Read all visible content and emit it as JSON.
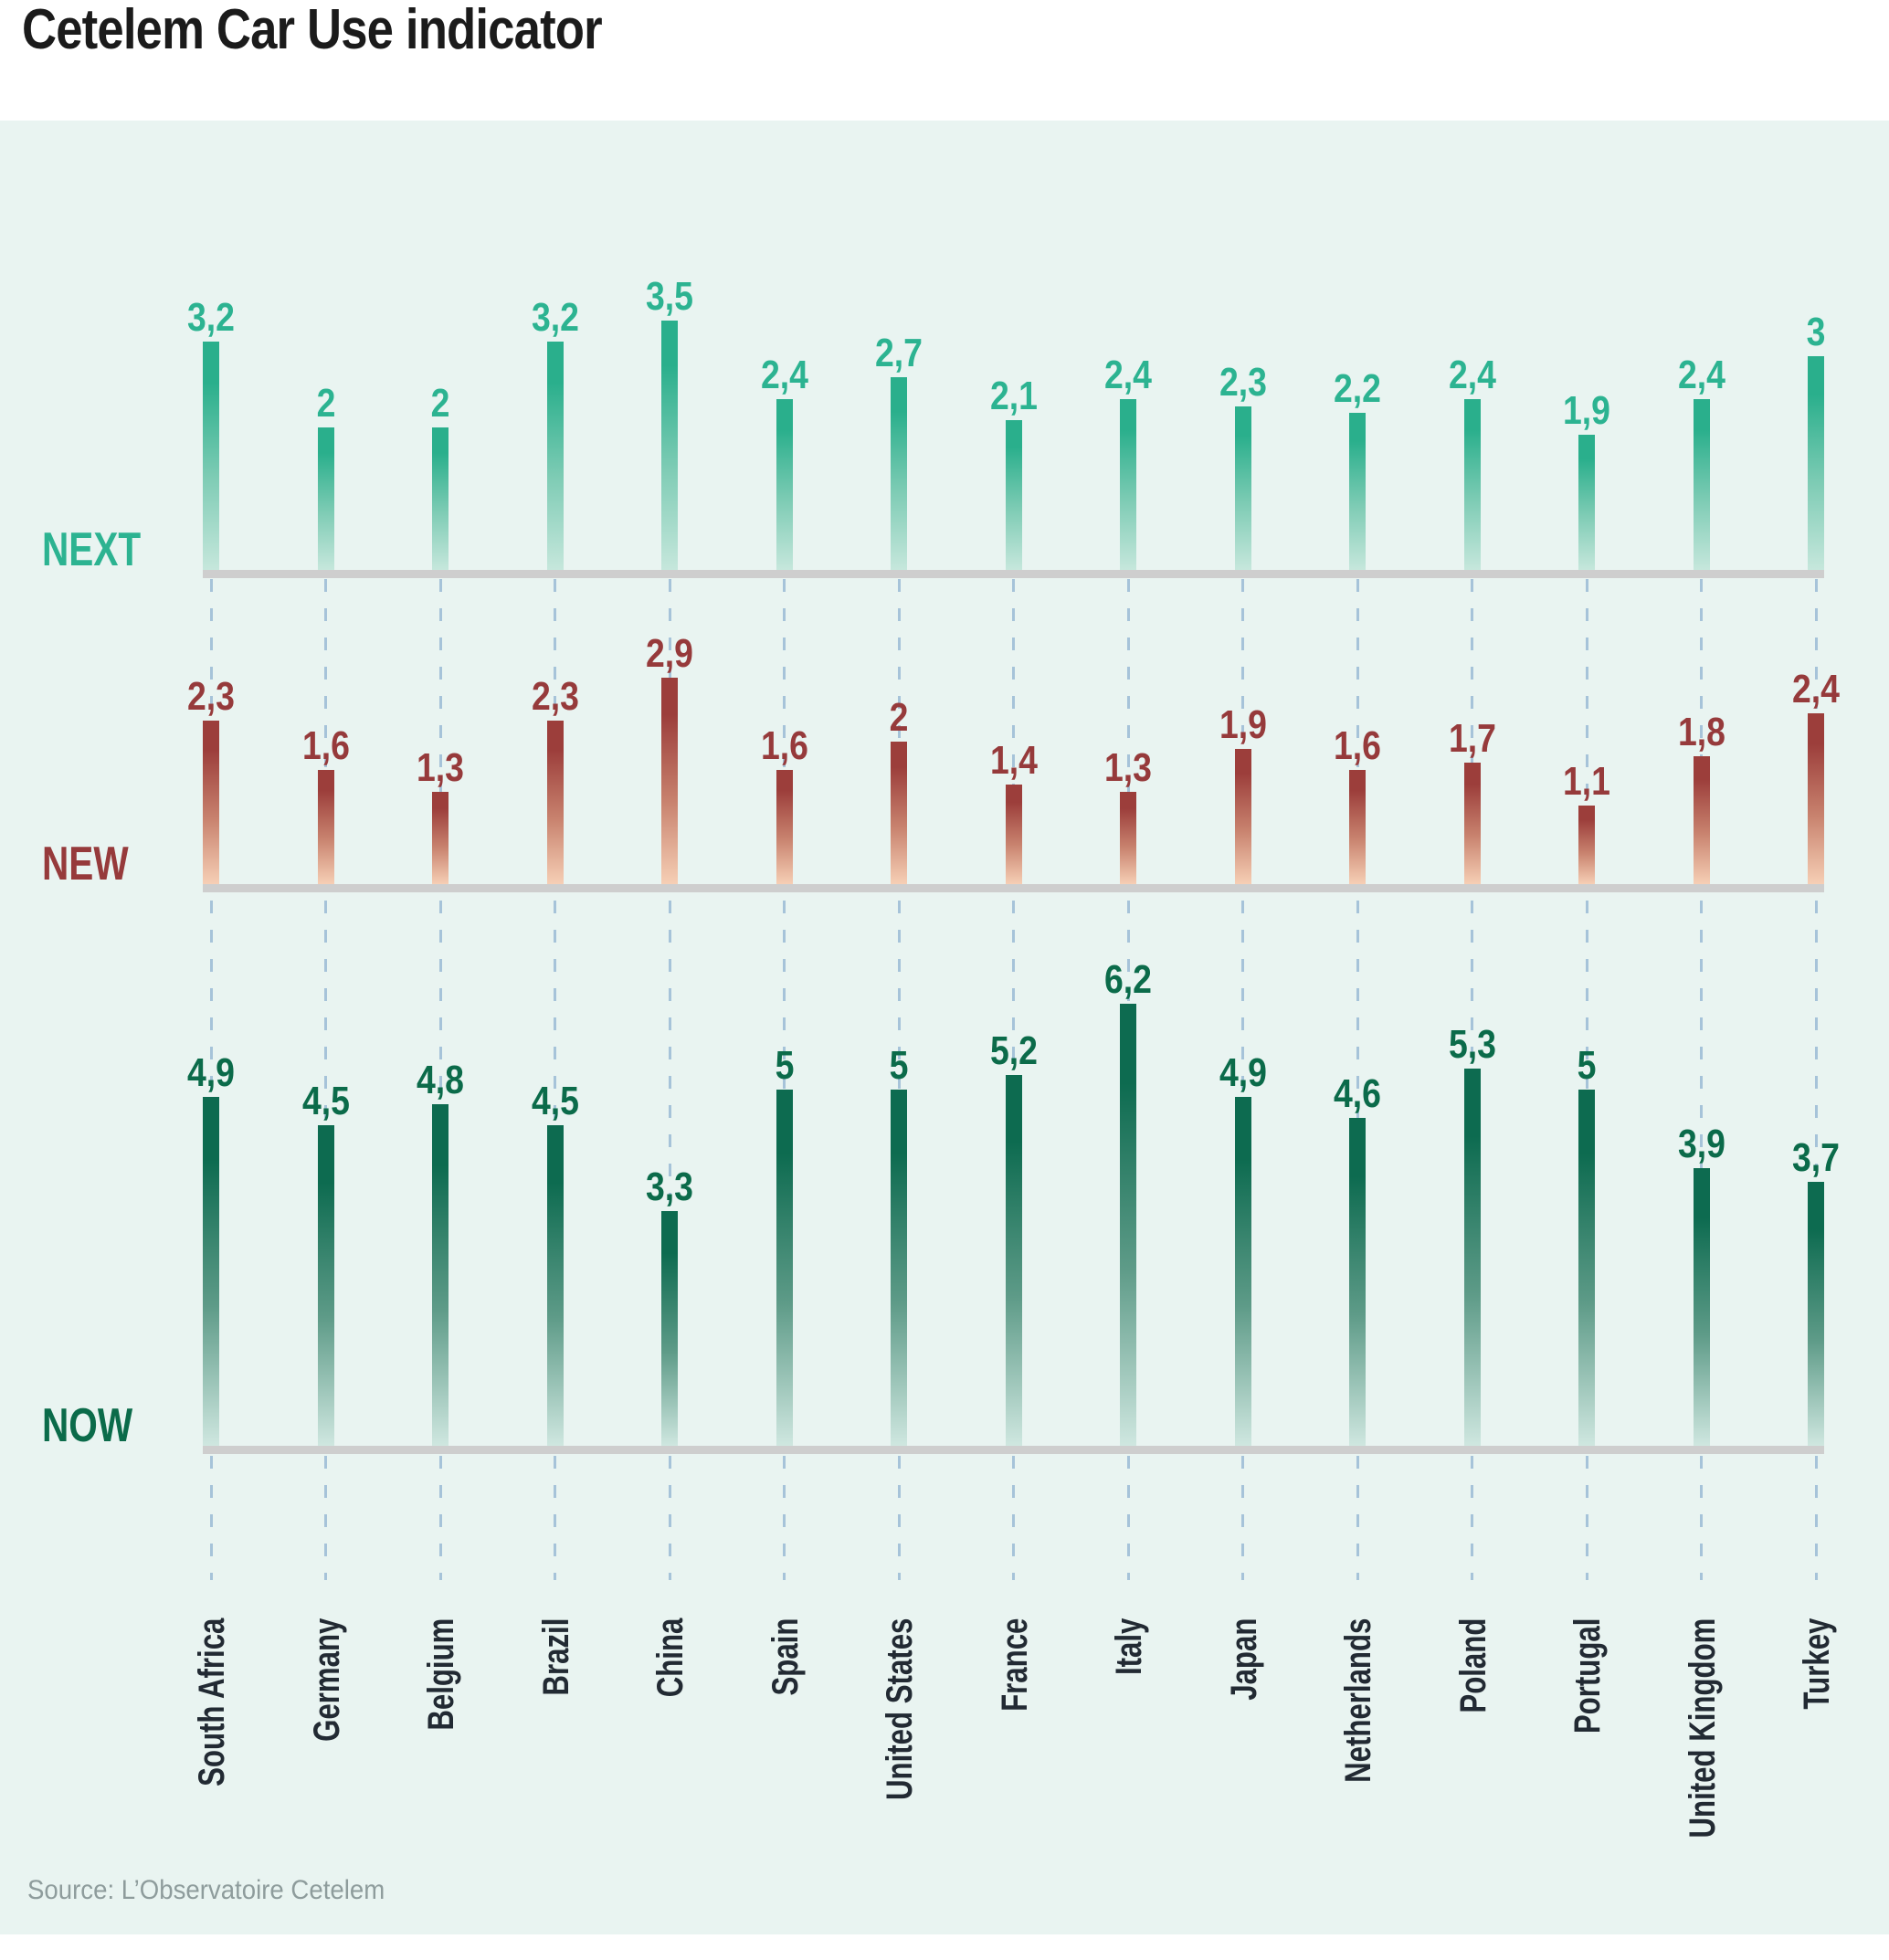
{
  "title": "Cetelem Car Use indicator",
  "source": "Source: L’Observatoire Cetelem",
  "colors": {
    "background": "#e9f4f1",
    "header_background": "#ffffff",
    "title_color": "#1b1b1b",
    "source_color": "#8e9c9c",
    "baseline": "#cecece",
    "dashed_line": "#a6c3d9",
    "country_label": "#222a33",
    "next_label": "#2cb391",
    "next_bar_top": "#2aaf8c",
    "next_bar_mid": "#7fccb5",
    "next_bar_bottom": "#c6e7dc",
    "new_label": "#963a3b",
    "new_bar_top": "#9c3e3b",
    "new_bar_mid": "#c8826e",
    "new_bar_bottom": "#f6cfb5",
    "now_label": "#0b6b4a",
    "now_bar_top": "#0d6b50",
    "now_bar_mid": "#5e9b88",
    "now_bar_bottom": "#cfe7e0"
  },
  "chart_data": {
    "type": "bar",
    "title": "Cetelem Car Use indicator",
    "orientation": "vertical",
    "value_format": "decimal comma",
    "ylim": [
      0,
      6.5
    ],
    "grid": "dashed vertical guide lines linking the three rows to country labels",
    "legend_position": "row labels at left (NEXT / NEW / NOW)",
    "categories": [
      "South Africa",
      "Germany",
      "Belgium",
      "Brazil",
      "China",
      "Spain",
      "United States",
      "France",
      "Italy",
      "Japan",
      "Netherlands",
      "Poland",
      "Portugal",
      "United Kingdom",
      "Turkey"
    ],
    "series": [
      {
        "name": "NEXT",
        "values": [
          3.2,
          2,
          2,
          3.2,
          3.5,
          2.4,
          2.7,
          2.1,
          2.4,
          2.3,
          2.2,
          2.4,
          1.9,
          2.4,
          3
        ],
        "labels": [
          "3,2",
          "2",
          "2",
          "3,2",
          "3,5",
          "2,4",
          "2,7",
          "2,1",
          "2,4",
          "2,3",
          "2,2",
          "2,4",
          "1,9",
          "2,4",
          "3"
        ]
      },
      {
        "name": "NEW",
        "values": [
          2.3,
          1.6,
          1.3,
          2.3,
          2.9,
          1.6,
          2,
          1.4,
          1.3,
          1.9,
          1.6,
          1.7,
          1.1,
          1.8,
          2.4
        ],
        "labels": [
          "2,3",
          "1,6",
          "1,3",
          "2,3",
          "2,9",
          "1,6",
          "2",
          "1,4",
          "1,3",
          "1,9",
          "1,6",
          "1,7",
          "1,1",
          "1,8",
          "2,4"
        ]
      },
      {
        "name": "NOW",
        "values": [
          4.9,
          4.5,
          4.8,
          4.5,
          3.3,
          5,
          5,
          5.2,
          6.2,
          4.9,
          4.6,
          5.3,
          5,
          3.9,
          3.7
        ],
        "labels": [
          "4,9",
          "4,5",
          "4,8",
          "4,5",
          "3,3",
          "5",
          "5",
          "5,2",
          "6,2",
          "4,9",
          "4,6",
          "5,3",
          "5",
          "3,9",
          "3,7"
        ]
      }
    ]
  }
}
